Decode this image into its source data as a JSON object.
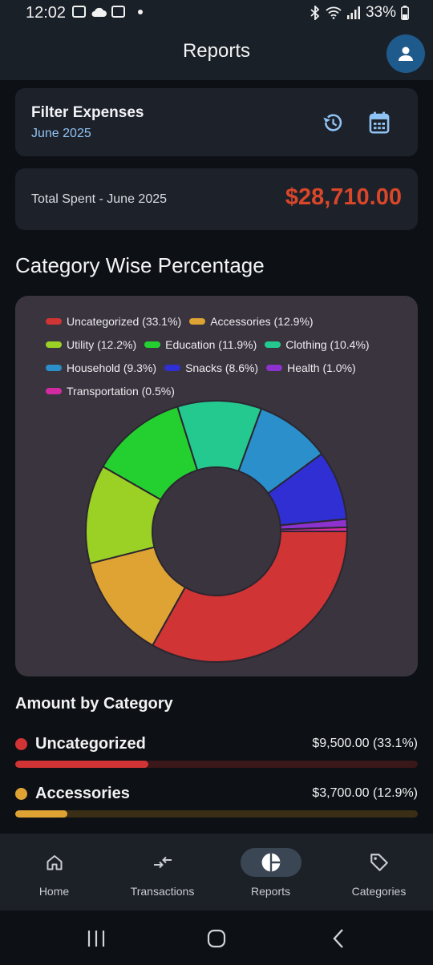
{
  "status_bar": {
    "time": "12:02",
    "battery": "33%"
  },
  "app_bar": {
    "title": "Reports"
  },
  "filter": {
    "title": "Filter Expenses",
    "period": "June 2025"
  },
  "total": {
    "label": "Total Spent - June 2025",
    "value": "$28,710.00"
  },
  "section_title": "Category Wise Percentage",
  "chart_data": {
    "type": "pie",
    "style": "donut",
    "categories": [
      "Uncategorized",
      "Accessories",
      "Utility",
      "Education",
      "Clothing",
      "Household",
      "Snacks",
      "Health",
      "Transportation"
    ],
    "values": [
      33.1,
      12.9,
      12.2,
      11.9,
      10.4,
      9.3,
      8.6,
      1.0,
      0.5
    ],
    "legend_labels": [
      "Uncategorized (33.1%)",
      "Accessories (12.9%)",
      "Utility (12.2%)",
      "Education (11.9%)",
      "Clothing (10.4%)",
      "Household (9.3%)",
      "Snacks (8.6%)",
      "Health (1.0%)",
      "Transportation (0.5%)"
    ],
    "colors": [
      "#d03434",
      "#dfa334",
      "#9bd124",
      "#24d02f",
      "#24c98f",
      "#2a8fca",
      "#2f2fd4",
      "#8e32cf",
      "#d32aa2"
    ],
    "legend_position": "top"
  },
  "amount_section": {
    "title": "Amount by Category",
    "rows": [
      {
        "name": "Uncategorized",
        "value": "$9,500.00 (33.1%)",
        "percent": 33.1,
        "color": "#d03434",
        "track": "#3a1719"
      },
      {
        "name": "Accessories",
        "value": "$3,700.00 (12.9%)",
        "percent": 12.9,
        "color": "#dfa334",
        "track": "#3a2e17"
      }
    ]
  },
  "bottom_nav": {
    "items": [
      {
        "label": "Home",
        "icon": "home-icon",
        "active": false
      },
      {
        "label": "Transactions",
        "icon": "transfer-arrows-icon",
        "active": false
      },
      {
        "label": "Reports",
        "icon": "pie-chart-icon",
        "active": true
      },
      {
        "label": "Categories",
        "icon": "tag-icon",
        "active": false
      }
    ]
  }
}
